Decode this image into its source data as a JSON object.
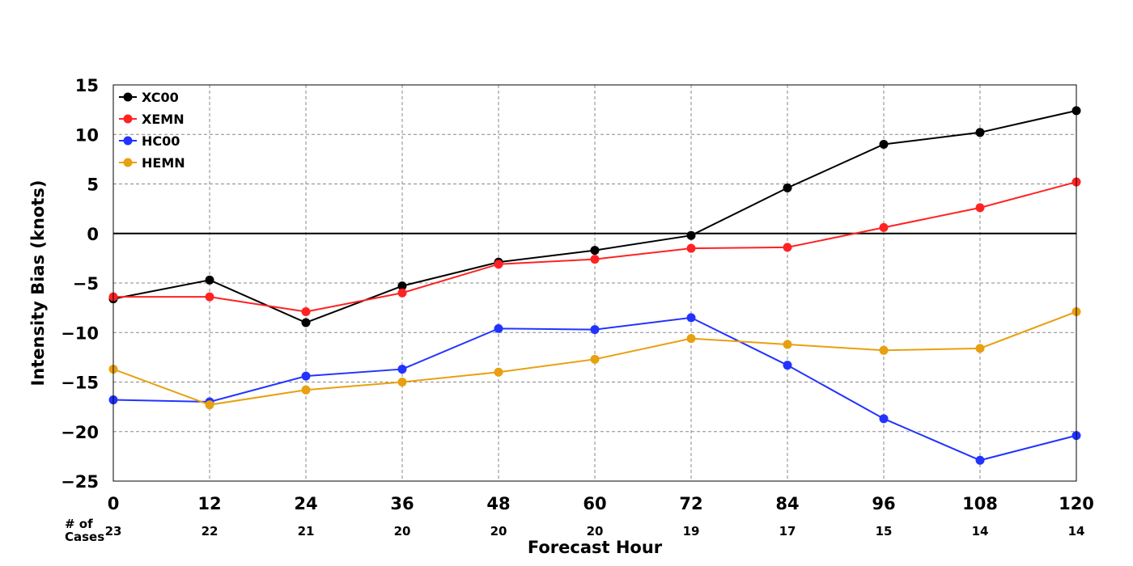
{
  "chart_data": {
    "type": "line",
    "title": "",
    "xlabel": "Forecast Hour",
    "ylabel": "Intensity Bias (knots)",
    "x": [
      0,
      12,
      24,
      36,
      48,
      60,
      72,
      84,
      96,
      108,
      120
    ],
    "x_tick_labels": [
      "0",
      "12",
      "24",
      "36",
      "48",
      "60",
      "72",
      "84",
      "96",
      "108",
      "120"
    ],
    "xlim": [
      0,
      120
    ],
    "ylim": [
      -25,
      15
    ],
    "y_ticks": [
      15,
      10,
      5,
      0,
      -5,
      -10,
      -15,
      -20,
      -25
    ],
    "y_tick_labels": [
      "15",
      "10",
      "5",
      "0",
      "−5",
      "−10",
      "−15",
      "−20",
      "−25"
    ],
    "grid": true,
    "grid_style": "dashed",
    "zero_line": true,
    "legend_position": "top-left",
    "cases_label_line1": "# of",
    "cases_label_line2": "Cases",
    "cases": [
      "23",
      "22",
      "21",
      "20",
      "20",
      "20",
      "19",
      "17",
      "15",
      "14",
      "14"
    ],
    "series": [
      {
        "name": "XC00",
        "color": "#000000",
        "values": [
          -6.6,
          -4.7,
          -9.0,
          -5.3,
          -2.9,
          -1.7,
          -0.2,
          4.6,
          9.0,
          10.2,
          12.4
        ]
      },
      {
        "name": "XEMN",
        "color": "#ff2222",
        "values": [
          -6.4,
          -6.4,
          -7.9,
          -6.0,
          -3.1,
          -2.6,
          -1.5,
          -1.4,
          0.6,
          2.6,
          5.2
        ]
      },
      {
        "name": "HC00",
        "color": "#2233ff",
        "values": [
          -16.8,
          -17.0,
          -14.4,
          -13.7,
          -9.6,
          -9.7,
          -8.5,
          -13.3,
          -18.7,
          -22.9,
          -20.4
        ]
      },
      {
        "name": "HEMN",
        "color": "#e8a010",
        "values": [
          -13.7,
          -17.3,
          -15.8,
          -15.0,
          -14.0,
          -12.7,
          -10.6,
          -11.2,
          -11.8,
          -11.6,
          -7.9
        ]
      }
    ]
  }
}
